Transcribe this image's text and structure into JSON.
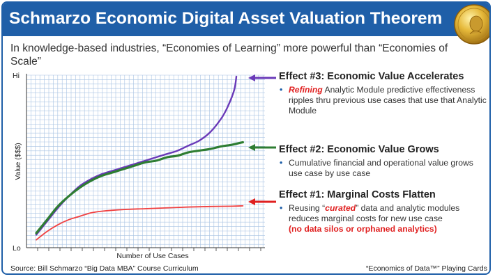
{
  "title": "Schmarzo Economic Digital Asset Valuation Theorem",
  "subtitle": "In knowledge-based industries, “Economies of Learning” more powerful than “Economies of Scale”",
  "medal_icon": "nobel-medal-icon",
  "effects": [
    {
      "title": "Effect #3: Economic Value Accelerates",
      "bullet_emphasis": "Refining",
      "bullet_rest": " Analytic Module predictive effectiveness ripples thru previous use cases that use that Analytic Module",
      "arrow_color": "#6a3ab8"
    },
    {
      "title": "Effect #2: Economic Value Grows",
      "bullet": "Cumulative financial and operational value grows use case by use case",
      "arrow_color": "#2e7d32"
    },
    {
      "title": "Effect #1: Marginal Costs Flatten",
      "bullet_pre": "Reusing “",
      "bullet_emphasis": "curated",
      "bullet_post": "” data and analytic modules reduces marginal costs for new use case",
      "bullet_note": "(no data silos or orphaned analytics)",
      "arrow_color": "#e02020"
    }
  ],
  "source": "Source: Bill Schmarzo “Big Data MBA” Course Curriculum",
  "footer_right": "“Economics of Data™” Playing Cards",
  "chart_data": {
    "type": "line",
    "xlabel": "Number of Use Cases",
    "ylabel": "Value ($$$)",
    "y_ticks": [
      "Hi",
      "Lo"
    ],
    "xlim": [
      0,
      1
    ],
    "ylim": [
      0,
      1
    ],
    "grid": true,
    "series": [
      {
        "color": "#6a3ab8",
        "points": [
          [
            0,
            0.06
          ],
          [
            0.05,
            0.14
          ],
          [
            0.1,
            0.22
          ],
          [
            0.15,
            0.29
          ],
          [
            0.2,
            0.35
          ],
          [
            0.25,
            0.39
          ],
          [
            0.3,
            0.42
          ],
          [
            0.35,
            0.44
          ],
          [
            0.4,
            0.46
          ],
          [
            0.45,
            0.48
          ],
          [
            0.5,
            0.5
          ],
          [
            0.55,
            0.52
          ],
          [
            0.6,
            0.54
          ],
          [
            0.65,
            0.56
          ],
          [
            0.7,
            0.59
          ],
          [
            0.75,
            0.62
          ],
          [
            0.8,
            0.67
          ],
          [
            0.85,
            0.75
          ],
          [
            0.88,
            0.82
          ],
          [
            0.91,
            0.92
          ],
          [
            0.92,
            1.0
          ]
        ]
      },
      {
        "color": "#2e7d32",
        "points": [
          [
            0,
            0.07
          ],
          [
            0.05,
            0.15
          ],
          [
            0.1,
            0.23
          ],
          [
            0.15,
            0.29
          ],
          [
            0.2,
            0.34
          ],
          [
            0.25,
            0.38
          ],
          [
            0.3,
            0.41
          ],
          [
            0.35,
            0.43
          ],
          [
            0.4,
            0.45
          ],
          [
            0.45,
            0.47
          ],
          [
            0.5,
            0.49
          ],
          [
            0.55,
            0.5
          ],
          [
            0.6,
            0.52
          ],
          [
            0.65,
            0.53
          ],
          [
            0.7,
            0.55
          ],
          [
            0.75,
            0.56
          ],
          [
            0.8,
            0.57
          ],
          [
            0.85,
            0.585
          ],
          [
            0.9,
            0.595
          ],
          [
            0.95,
            0.61
          ]
        ]
      },
      {
        "color": "#f04040",
        "points": [
          [
            0,
            0.03
          ],
          [
            0.05,
            0.08
          ],
          [
            0.1,
            0.12
          ],
          [
            0.15,
            0.15
          ],
          [
            0.2,
            0.17
          ],
          [
            0.25,
            0.19
          ],
          [
            0.3,
            0.2
          ],
          [
            0.4,
            0.21
          ],
          [
            0.5,
            0.215
          ],
          [
            0.6,
            0.22
          ],
          [
            0.7,
            0.225
          ],
          [
            0.8,
            0.228
          ],
          [
            0.9,
            0.23
          ],
          [
            0.95,
            0.232
          ]
        ]
      }
    ]
  }
}
